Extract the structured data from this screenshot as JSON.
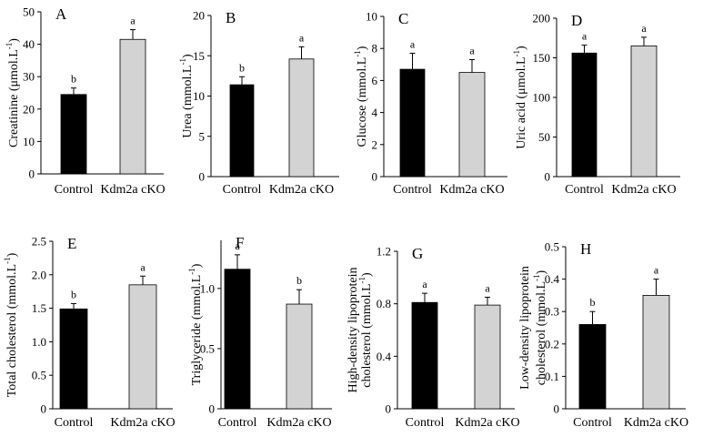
{
  "figure": {
    "y_unit_note": "Y-axis unit superscripts -1 are part of labels."
  },
  "chart_data": [
    {
      "panel": "A",
      "type": "bar",
      "categories": [
        "Control",
        "Kdm2a cKO"
      ],
      "values": [
        24.5,
        41.5
      ],
      "errors": [
        2.0,
        3.0
      ],
      "significance": [
        "b",
        "a"
      ],
      "ylabel": "Creatinine (μmol.L",
      "ylabel_sup": "-1",
      "ylabel_tail": ")",
      "ylim": [
        0,
        50
      ],
      "yticks": [
        "0",
        "10",
        "20",
        "30",
        "40",
        "50"
      ],
      "colors": [
        "#000000",
        "#d3d3d3"
      ]
    },
    {
      "panel": "B",
      "type": "bar",
      "categories": [
        "Control",
        "Kdm2a cKO"
      ],
      "values": [
        11.4,
        14.6
      ],
      "errors": [
        1.0,
        1.5
      ],
      "significance": [
        "b",
        "a"
      ],
      "ylabel": "Urea (mmol.L",
      "ylabel_sup": "-1",
      "ylabel_tail": ")",
      "ylim": [
        0,
        20
      ],
      "yticks": [
        "0",
        "5",
        "10",
        "15",
        "20"
      ],
      "colors": [
        "#000000",
        "#d3d3d3"
      ]
    },
    {
      "panel": "C",
      "type": "bar",
      "categories": [
        "Control",
        "Kdm2a cKO"
      ],
      "values": [
        6.7,
        6.5
      ],
      "errors": [
        1.0,
        0.8
      ],
      "significance": [
        "a",
        "a"
      ],
      "ylabel": "Glucose (mmol.L",
      "ylabel_sup": "-1",
      "ylabel_tail": ")",
      "ylim": [
        0,
        10
      ],
      "yticks": [
        "0",
        "2",
        "4",
        "6",
        "8",
        "10"
      ],
      "colors": [
        "#000000",
        "#d3d3d3"
      ]
    },
    {
      "panel": "D",
      "type": "bar",
      "categories": [
        "Control",
        "Kdm2a cKO"
      ],
      "values": [
        156,
        165
      ],
      "errors": [
        10,
        11
      ],
      "significance": [
        "a",
        "a"
      ],
      "ylabel": "Uric acid (μmol.L",
      "ylabel_sup": "-1",
      "ylabel_tail": ")",
      "ylim": [
        0,
        200
      ],
      "yticks": [
        "0",
        "50",
        "100",
        "150",
        "200"
      ],
      "colors": [
        "#000000",
        "#d3d3d3"
      ]
    },
    {
      "panel": "E",
      "type": "bar",
      "categories": [
        "Control",
        "Kdm2a cKO"
      ],
      "values": [
        1.49,
        1.85
      ],
      "errors": [
        0.08,
        0.13
      ],
      "significance": [
        "b",
        "a"
      ],
      "ylabel": "Total cholesterol (mmol.L",
      "ylabel_sup": "-1",
      "ylabel_tail": ")",
      "ylim": [
        0,
        2.5
      ],
      "yticks": [
        "0",
        "0.5",
        "1.0",
        "1.5",
        "2.0",
        "2.5"
      ],
      "colors": [
        "#000000",
        "#d3d3d3"
      ]
    },
    {
      "panel": "F",
      "type": "bar",
      "categories": [
        "Control",
        "Kdm2a cKO"
      ],
      "values": [
        1.16,
        0.87
      ],
      "errors": [
        0.12,
        0.12
      ],
      "significance": [
        "a",
        "b"
      ],
      "ylabel": "Triglyceride (mmol.L",
      "ylabel_sup": "-1",
      "ylabel_tail": ")",
      "ylim": [
        0,
        1.4
      ],
      "yticks": [
        "0",
        "0.5",
        "1.0"
      ],
      "ytick_values": [
        0,
        0.5,
        1.0
      ],
      "colors": [
        "#000000",
        "#d3d3d3"
      ]
    },
    {
      "panel": "G",
      "type": "bar",
      "categories": [
        "Control",
        "Kdm2a cKO"
      ],
      "values": [
        0.81,
        0.79
      ],
      "errors": [
        0.07,
        0.06
      ],
      "significance": [
        "a",
        "a"
      ],
      "ylabel": "High-density lipoprotein",
      "ylabel2": "cholesterol (mmol.L",
      "ylabel_sup": "-1",
      "ylabel_tail": ")",
      "ylim": [
        0,
        1.2
      ],
      "yticks": [
        "0",
        "0.4",
        "0.8",
        "1.2"
      ],
      "colors": [
        "#000000",
        "#d3d3d3"
      ]
    },
    {
      "panel": "H",
      "type": "bar",
      "categories": [
        "Control",
        "Kdm2a cKO"
      ],
      "values": [
        0.26,
        0.35
      ],
      "errors": [
        0.04,
        0.05
      ],
      "significance": [
        "b",
        "a"
      ],
      "ylabel": "Low-density lipoprotein",
      "ylabel2": "cholesterol (mmol.L",
      "ylabel_sup": "-1",
      "ylabel_tail": ")",
      "ylim": [
        0,
        0.5
      ],
      "yticks": [
        "0",
        "0.1",
        "0.2",
        "0.3",
        "0.4",
        "0.5"
      ],
      "colors": [
        "#000000",
        "#d3d3d3"
      ]
    }
  ]
}
